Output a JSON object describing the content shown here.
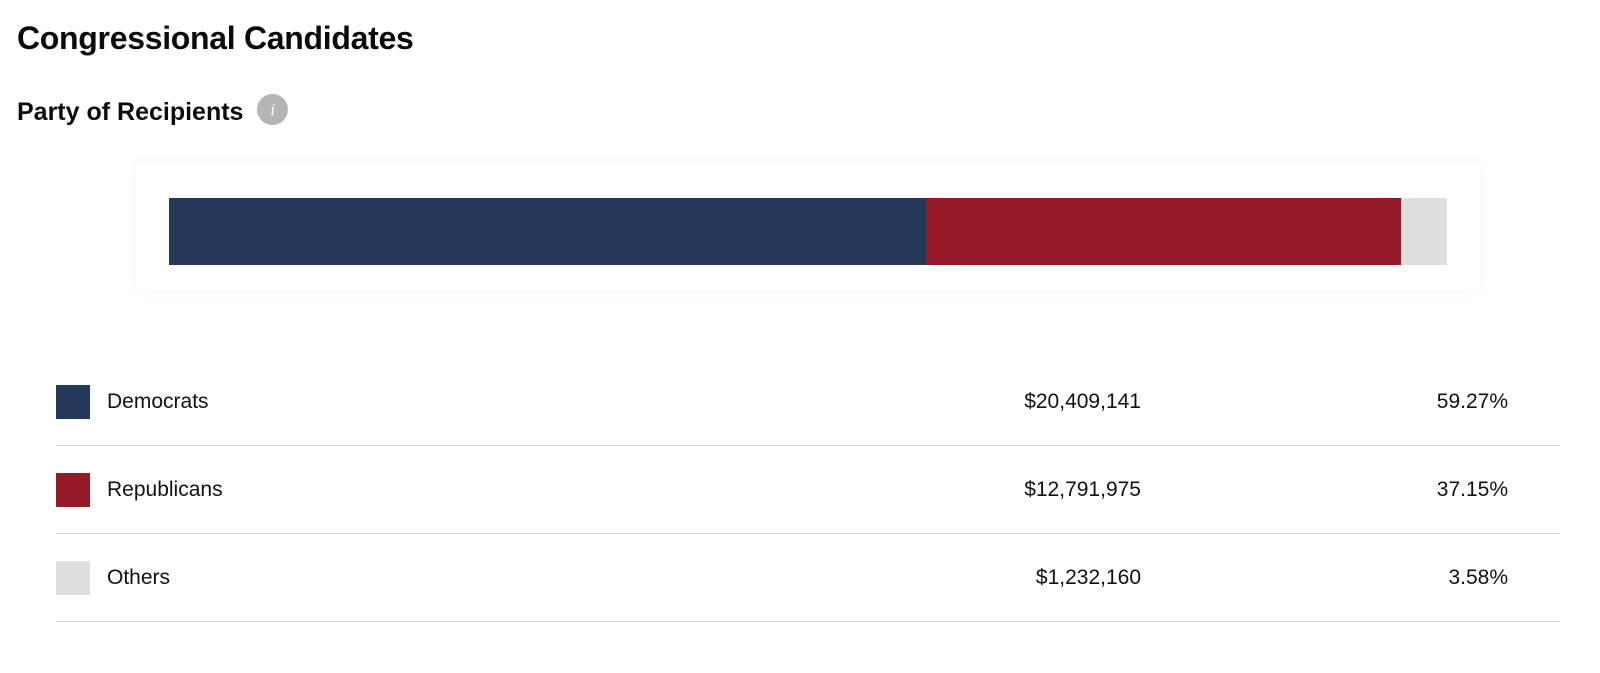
{
  "page": {
    "title": "Congressional Candidates"
  },
  "section": {
    "title": "Party of Recipients",
    "info_icon_glyph": "i",
    "info_icon_name": "info-icon"
  },
  "chart_data": {
    "type": "bar",
    "orientation": "horizontal-stacked",
    "title": "Party of Recipients",
    "categories": [
      "Democrats",
      "Republicans",
      "Others"
    ],
    "values": [
      20409141,
      12791975,
      1232160
    ],
    "percentages": [
      59.27,
      37.15,
      3.58
    ],
    "colors": [
      "#243859",
      "#931a26",
      "#dedede"
    ],
    "value_labels": [
      "$20,409,141",
      "$12,791,975",
      "$1,232,160"
    ],
    "percent_labels": [
      "59.27%",
      "37.15%",
      "3.58%"
    ],
    "grid": false,
    "legend_position": "bottom"
  },
  "legend": {
    "rows": [
      {
        "label": "Democrats",
        "amount": "$20,409,141",
        "percent": "59.27%",
        "color": "#243859"
      },
      {
        "label": "Republicans",
        "amount": "$12,791,975",
        "percent": "37.15%",
        "color": "#931a26"
      },
      {
        "label": "Others",
        "amount": "$1,232,160",
        "percent": "3.58%",
        "color": "#dedede"
      }
    ]
  }
}
